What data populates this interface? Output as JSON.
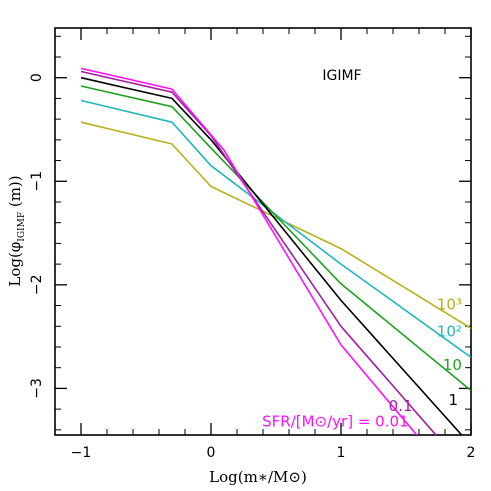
{
  "chart_data": {
    "type": "line",
    "title": "IGIMF",
    "xlabel": "Log(m∗/M⊙)",
    "ylabel_main": "Log(φ",
    "ylabel_sub": "IGIMF",
    "ylabel_tail": " (m))",
    "xlim": [
      -1.2,
      2.0
    ],
    "ylim": [
      -3.45,
      0.48
    ],
    "xticks": [
      -1,
      0,
      1,
      2
    ],
    "xtick_labels": [
      "−1",
      "0",
      "1",
      "2"
    ],
    "yticks": [
      0,
      -1,
      -2,
      -3
    ],
    "ytick_labels": [
      "0",
      "−1",
      "−2",
      "−3"
    ],
    "grid": false,
    "series": [
      {
        "name": "10³",
        "color": "#b8b01a",
        "x": [
          -1.0,
          -0.3,
          0.0,
          1.0,
          2.0
        ],
        "y": [
          -0.43,
          -0.64,
          -1.05,
          -1.65,
          -2.42
        ]
      },
      {
        "name": "10²",
        "color": "#20b8b8",
        "x": [
          -1.0,
          -0.3,
          0.0,
          1.0,
          2.0
        ],
        "y": [
          -0.22,
          -0.43,
          -0.85,
          -1.8,
          -2.7
        ]
      },
      {
        "name": "10",
        "color": "#20a020",
        "x": [
          -1.0,
          -0.3,
          0.0,
          1.0,
          2.0
        ],
        "y": [
          -0.08,
          -0.28,
          -0.68,
          -1.99,
          -3.02
        ]
      },
      {
        "name": "1",
        "color": "#000000",
        "x": [
          -1.0,
          -0.3,
          0.0,
          1.0,
          2.0
        ],
        "y": [
          0.0,
          -0.2,
          -0.6,
          -2.15,
          -3.55
        ]
      },
      {
        "name": "0.1",
        "color": "#a020a0",
        "x": [
          -1.0,
          -0.3,
          0.0,
          1.0,
          1.8
        ],
        "y": [
          0.06,
          -0.14,
          -0.56,
          -2.4,
          -3.55
        ]
      },
      {
        "name": "SFR/[M⊙/yr] = 0.01",
        "color": "#ff10ff",
        "x": [
          -1.0,
          -0.3,
          0.1,
          1.0,
          1.65
        ],
        "y": [
          0.09,
          -0.11,
          -0.7,
          -2.58,
          -3.55
        ]
      }
    ],
    "labels": [
      {
        "text": "10³",
        "color": "#b8b01a",
        "x": 1.93,
        "y": -2.24
      },
      {
        "text": "10²",
        "color": "#20b8b8",
        "x": 1.93,
        "y": -2.5
      },
      {
        "text": "10",
        "color": "#20a020",
        "x": 1.93,
        "y": -2.82
      },
      {
        "text": "1",
        "color": "#000000",
        "x": 1.9,
        "y": -3.16
      },
      {
        "text": "0.1",
        "color": "#a020a0",
        "x": 1.55,
        "y": -3.22
      },
      {
        "text": "SFR/[M⊙/yr] = 0.01",
        "color": "#ff10ff",
        "x": 1.52,
        "y": -3.37
      }
    ]
  }
}
